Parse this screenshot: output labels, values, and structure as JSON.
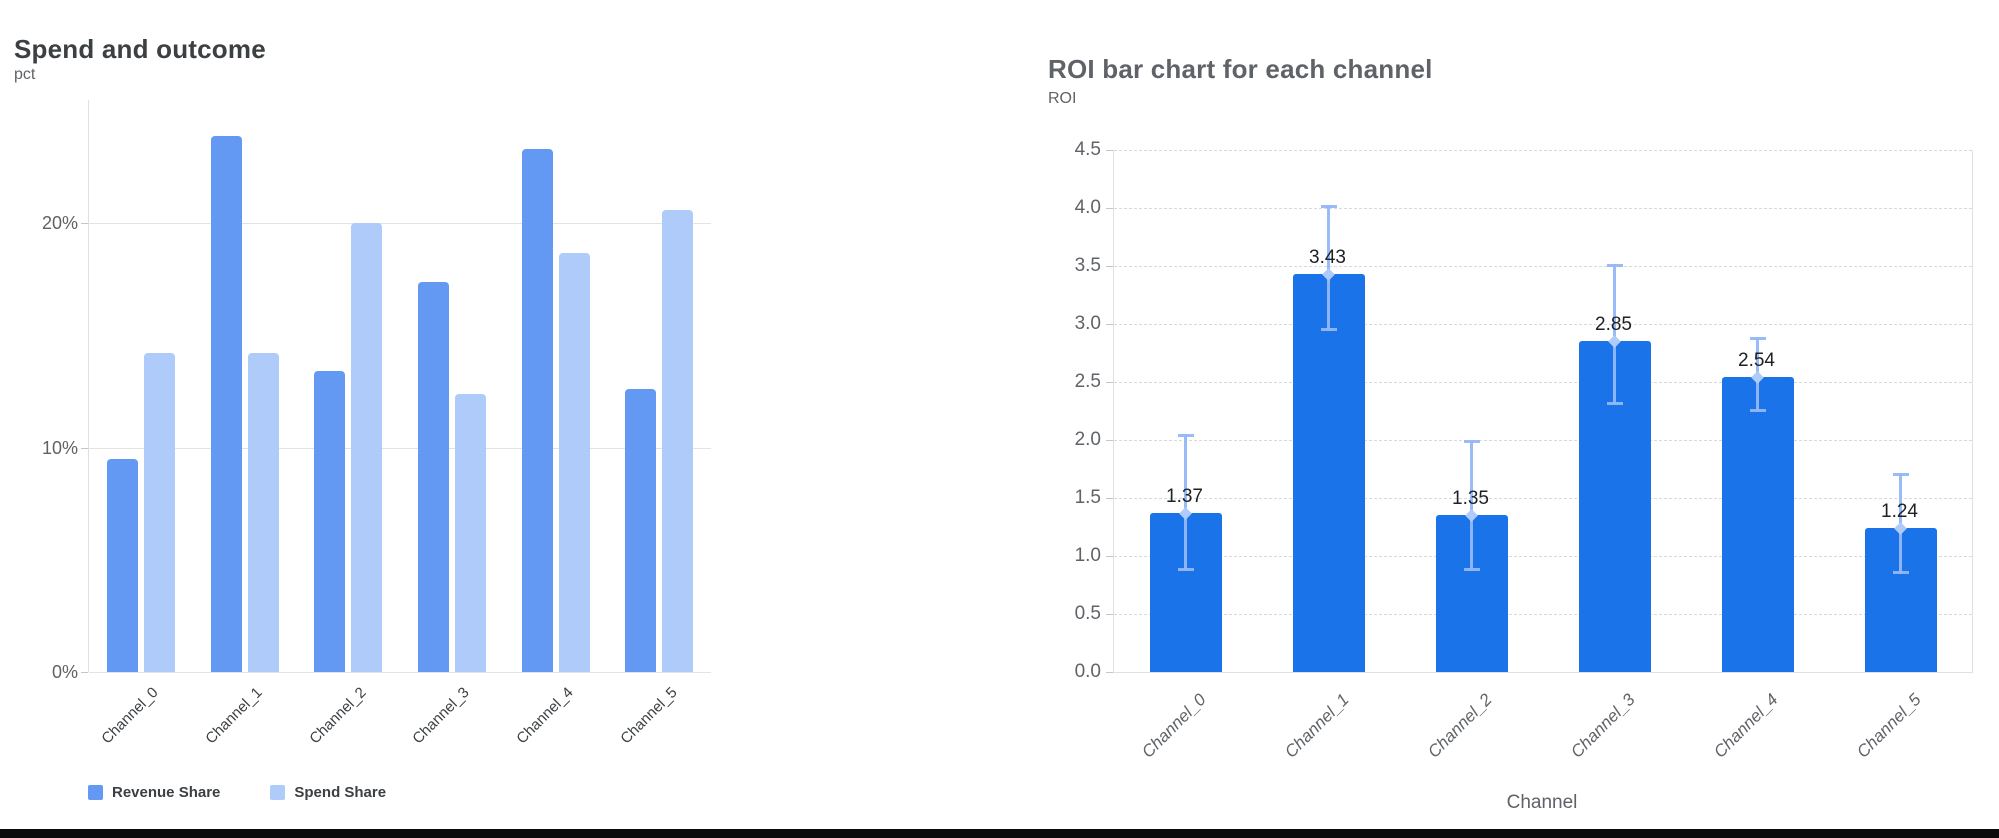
{
  "page": {
    "background": "#ffffff",
    "bottom_border_color": "#0b0b0b"
  },
  "chart_data": [
    {
      "type": "bar",
      "title": "Spend and outcome",
      "ylabel": "pct",
      "xlabel": "",
      "categories": [
        "Channel_0",
        "Channel_1",
        "Channel_2",
        "Channel_3",
        "Channel_4",
        "Channel_5"
      ],
      "series": [
        {
          "name": "Revenue Share",
          "color": "#6399f3",
          "values": [
            9.5,
            23.9,
            13.4,
            17.4,
            23.3,
            12.6
          ]
        },
        {
          "name": "Spend Share",
          "color": "#aecbfa",
          "values": [
            14.2,
            14.2,
            20.0,
            12.4,
            18.7,
            20.6
          ]
        }
      ],
      "y_ticks": [
        {
          "value": 0,
          "label": "0%"
        },
        {
          "value": 10,
          "label": "10%"
        },
        {
          "value": 20,
          "label": "20%"
        }
      ],
      "ylim": [
        0,
        25.5
      ],
      "grid": true,
      "legend_position": "bottom"
    },
    {
      "type": "bar",
      "title": "ROI bar chart for each channel",
      "ylabel": "ROI",
      "xlabel": "Channel",
      "categories": [
        "Channel_0",
        "Channel_1",
        "Channel_2",
        "Channel_3",
        "Channel_4",
        "Channel_5"
      ],
      "values": [
        1.37,
        3.43,
        1.35,
        2.85,
        2.54,
        1.24
      ],
      "value_labels": [
        "1.37",
        "3.43",
        "1.35",
        "2.85",
        "2.54",
        "1.24"
      ],
      "error_bars": [
        {
          "low": 0.88,
          "high": 2.04
        },
        {
          "low": 2.95,
          "high": 4.02
        },
        {
          "low": 0.88,
          "high": 1.99
        },
        {
          "low": 2.31,
          "high": 3.51
        },
        {
          "low": 2.25,
          "high": 2.88
        },
        {
          "low": 0.85,
          "high": 1.71
        }
      ],
      "bar_color": "#1a73e8",
      "error_bar_color": "#93b7f7",
      "y_ticks": [
        {
          "value": 0.0,
          "label": "0.0"
        },
        {
          "value": 0.5,
          "label": "0.5"
        },
        {
          "value": 1.0,
          "label": "1.0"
        },
        {
          "value": 1.5,
          "label": "1.5"
        },
        {
          "value": 2.0,
          "label": "2.0"
        },
        {
          "value": 2.5,
          "label": "2.5"
        },
        {
          "value": 3.0,
          "label": "3.0"
        },
        {
          "value": 3.5,
          "label": "3.5"
        },
        {
          "value": 4.0,
          "label": "4.0"
        },
        {
          "value": 4.5,
          "label": "4.5"
        }
      ],
      "ylim": [
        0,
        4.5
      ],
      "grid": true,
      "grid_style": "dashed",
      "legend_position": "none"
    }
  ]
}
